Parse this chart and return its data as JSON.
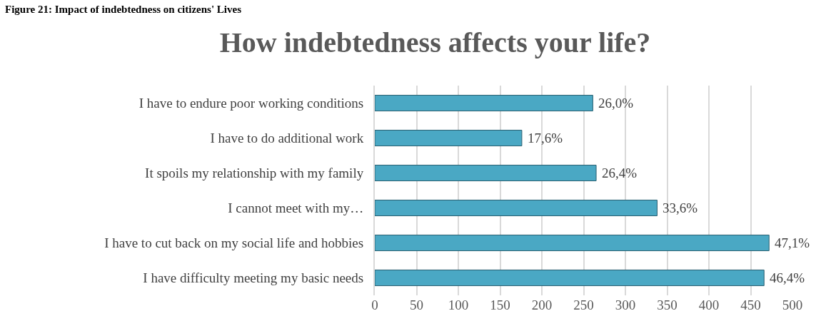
{
  "chart_data": {
    "type": "bar",
    "orientation": "horizontal",
    "title": "How indebtedness affects your life?",
    "annotations": [
      "Figure 21: Impact of indebtedness on citizens' Lives",
      {
        "text": "26,0%",
        "x": 261,
        "y": "I have to endure poor working conditions"
      },
      {
        "text": "17,6%",
        "x": 176,
        "y": "I have to do additional work"
      },
      {
        "text": "26,4%",
        "x": 265,
        "y": "It spoils my relationship with my family"
      },
      {
        "text": "33,6%",
        "x": 338,
        "y": "I cannot meet with my…"
      },
      {
        "text": "47,1%",
        "x": 472,
        "y": "I have to cut back on my social life and hobbies"
      },
      {
        "text": "46,4%",
        "x": 466,
        "y": "I have difficulty meeting my basic needs"
      }
    ],
    "categories": [
      "I have to endure poor working conditions",
      "I have to do additional work",
      "It spoils my relationship with my family",
      "I cannot meet with my…",
      "I have to cut back on my social life and hobbies",
      "I have difficulty meeting my basic needs"
    ],
    "values": [
      261,
      176,
      265,
      338,
      472,
      466
    ],
    "color": "#4aa8c4",
    "xlim": [
      0,
      500
    ],
    "xticks": [
      0,
      50,
      100,
      150,
      200,
      250,
      300,
      350,
      400,
      450,
      500
    ],
    "grid": "x",
    "legend": false
  }
}
